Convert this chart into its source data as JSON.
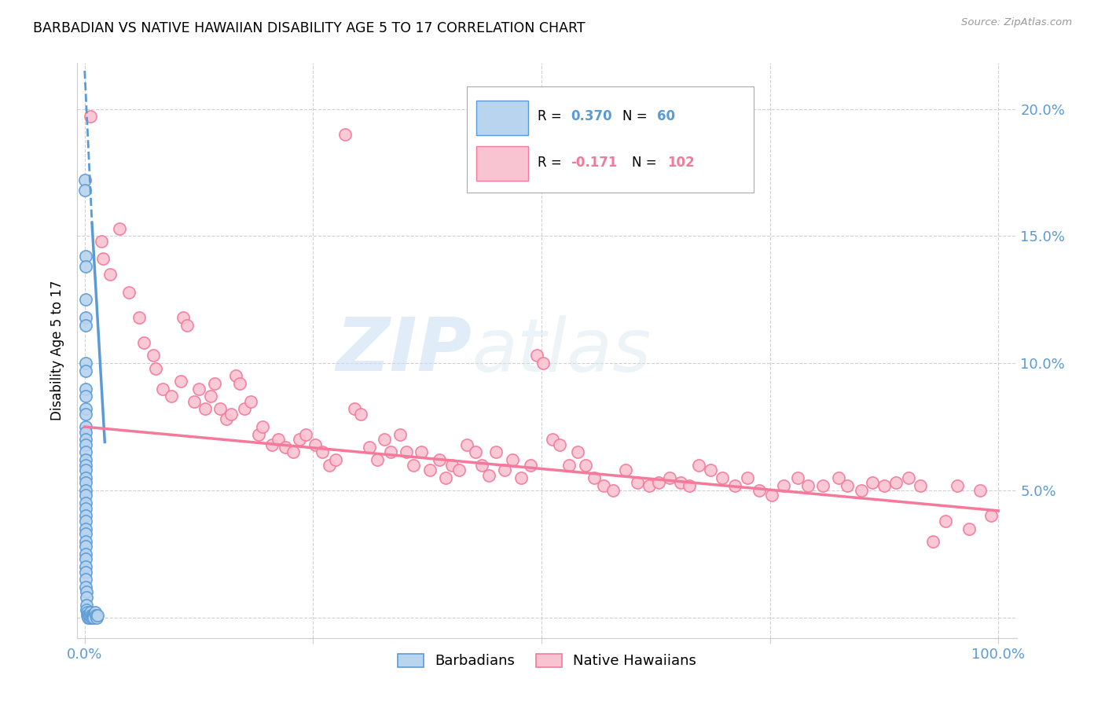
{
  "title": "BARBADIAN VS NATIVE HAWAIIAN DISABILITY AGE 5 TO 17 CORRELATION CHART",
  "source": "Source: ZipAtlas.com",
  "ylabel": "Disability Age 5 to 17",
  "watermark_zip": "ZIP",
  "watermark_atlas": "atlas",
  "xlim": [
    -0.008,
    1.02
  ],
  "ylim": [
    -0.008,
    0.218
  ],
  "yticks": [
    0.0,
    0.05,
    0.1,
    0.15,
    0.2
  ],
  "ytick_labels": [
    "",
    "5.0%",
    "10.0%",
    "15.0%",
    "20.0%"
  ],
  "blue_color": "#5b9bd5",
  "pink_color": "#f4799a",
  "blue_fill": "#b8d4ef",
  "pink_fill": "#f9c4d2",
  "trendline_blue_dashed": [
    [
      0.0,
      0.215
    ],
    [
      0.008,
      0.155
    ]
  ],
  "trendline_blue_solid": [
    [
      0.008,
      0.155
    ],
    [
      0.022,
      0.069
    ]
  ],
  "trendline_pink": [
    [
      0.0,
      0.075
    ],
    [
      1.0,
      0.042
    ]
  ],
  "barbadian_points": [
    [
      0.0,
      0.172
    ],
    [
      0.0,
      0.168
    ],
    [
      0.001,
      0.142
    ],
    [
      0.001,
      0.138
    ],
    [
      0.001,
      0.125
    ],
    [
      0.001,
      0.118
    ],
    [
      0.001,
      0.115
    ],
    [
      0.001,
      0.1
    ],
    [
      0.001,
      0.097
    ],
    [
      0.001,
      0.09
    ],
    [
      0.001,
      0.087
    ],
    [
      0.001,
      0.082
    ],
    [
      0.001,
      0.08
    ],
    [
      0.001,
      0.075
    ],
    [
      0.001,
      0.073
    ],
    [
      0.001,
      0.07
    ],
    [
      0.001,
      0.068
    ],
    [
      0.001,
      0.065
    ],
    [
      0.001,
      0.062
    ],
    [
      0.001,
      0.06
    ],
    [
      0.001,
      0.058
    ],
    [
      0.001,
      0.055
    ],
    [
      0.001,
      0.053
    ],
    [
      0.001,
      0.05
    ],
    [
      0.001,
      0.048
    ],
    [
      0.001,
      0.045
    ],
    [
      0.001,
      0.043
    ],
    [
      0.001,
      0.04
    ],
    [
      0.001,
      0.038
    ],
    [
      0.001,
      0.035
    ],
    [
      0.001,
      0.033
    ],
    [
      0.001,
      0.03
    ],
    [
      0.001,
      0.028
    ],
    [
      0.001,
      0.025
    ],
    [
      0.001,
      0.023
    ],
    [
      0.001,
      0.02
    ],
    [
      0.001,
      0.018
    ],
    [
      0.001,
      0.015
    ],
    [
      0.001,
      0.012
    ],
    [
      0.002,
      0.01
    ],
    [
      0.002,
      0.008
    ],
    [
      0.002,
      0.005
    ],
    [
      0.002,
      0.003
    ],
    [
      0.003,
      0.002
    ],
    [
      0.003,
      0.001
    ],
    [
      0.004,
      0.001
    ],
    [
      0.004,
      0.0
    ],
    [
      0.005,
      0.0
    ],
    [
      0.005,
      0.001
    ],
    [
      0.006,
      0.002
    ],
    [
      0.007,
      0.001
    ],
    [
      0.008,
      0.0
    ],
    [
      0.009,
      0.001
    ],
    [
      0.01,
      0.001
    ],
    [
      0.01,
      0.0
    ],
    [
      0.011,
      0.002
    ],
    [
      0.012,
      0.001
    ],
    [
      0.013,
      0.0
    ],
    [
      0.014,
      0.001
    ]
  ],
  "hawaiian_points": [
    [
      0.006,
      0.197
    ],
    [
      0.018,
      0.148
    ],
    [
      0.02,
      0.141
    ],
    [
      0.028,
      0.135
    ],
    [
      0.038,
      0.153
    ],
    [
      0.048,
      0.128
    ],
    [
      0.06,
      0.118
    ],
    [
      0.065,
      0.108
    ],
    [
      0.075,
      0.103
    ],
    [
      0.078,
      0.098
    ],
    [
      0.085,
      0.09
    ],
    [
      0.095,
      0.087
    ],
    [
      0.105,
      0.093
    ],
    [
      0.108,
      0.118
    ],
    [
      0.112,
      0.115
    ],
    [
      0.12,
      0.085
    ],
    [
      0.125,
      0.09
    ],
    [
      0.132,
      0.082
    ],
    [
      0.138,
      0.087
    ],
    [
      0.142,
      0.092
    ],
    [
      0.148,
      0.082
    ],
    [
      0.155,
      0.078
    ],
    [
      0.16,
      0.08
    ],
    [
      0.165,
      0.095
    ],
    [
      0.17,
      0.092
    ],
    [
      0.175,
      0.082
    ],
    [
      0.182,
      0.085
    ],
    [
      0.19,
      0.072
    ],
    [
      0.195,
      0.075
    ],
    [
      0.205,
      0.068
    ],
    [
      0.212,
      0.07
    ],
    [
      0.22,
      0.067
    ],
    [
      0.228,
      0.065
    ],
    [
      0.235,
      0.07
    ],
    [
      0.242,
      0.072
    ],
    [
      0.252,
      0.068
    ],
    [
      0.26,
      0.065
    ],
    [
      0.268,
      0.06
    ],
    [
      0.275,
      0.062
    ],
    [
      0.285,
      0.19
    ],
    [
      0.295,
      0.082
    ],
    [
      0.302,
      0.08
    ],
    [
      0.312,
      0.067
    ],
    [
      0.32,
      0.062
    ],
    [
      0.328,
      0.07
    ],
    [
      0.335,
      0.065
    ],
    [
      0.345,
      0.072
    ],
    [
      0.352,
      0.065
    ],
    [
      0.36,
      0.06
    ],
    [
      0.368,
      0.065
    ],
    [
      0.378,
      0.058
    ],
    [
      0.388,
      0.062
    ],
    [
      0.395,
      0.055
    ],
    [
      0.402,
      0.06
    ],
    [
      0.41,
      0.058
    ],
    [
      0.418,
      0.068
    ],
    [
      0.428,
      0.065
    ],
    [
      0.435,
      0.06
    ],
    [
      0.442,
      0.056
    ],
    [
      0.45,
      0.065
    ],
    [
      0.46,
      0.058
    ],
    [
      0.468,
      0.062
    ],
    [
      0.478,
      0.055
    ],
    [
      0.488,
      0.06
    ],
    [
      0.495,
      0.103
    ],
    [
      0.502,
      0.1
    ],
    [
      0.512,
      0.07
    ],
    [
      0.52,
      0.068
    ],
    [
      0.53,
      0.06
    ],
    [
      0.54,
      0.065
    ],
    [
      0.548,
      0.06
    ],
    [
      0.558,
      0.055
    ],
    [
      0.568,
      0.052
    ],
    [
      0.578,
      0.05
    ],
    [
      0.592,
      0.058
    ],
    [
      0.605,
      0.053
    ],
    [
      0.618,
      0.052
    ],
    [
      0.628,
      0.053
    ],
    [
      0.64,
      0.055
    ],
    [
      0.652,
      0.053
    ],
    [
      0.662,
      0.052
    ],
    [
      0.672,
      0.06
    ],
    [
      0.685,
      0.058
    ],
    [
      0.698,
      0.055
    ],
    [
      0.712,
      0.052
    ],
    [
      0.725,
      0.055
    ],
    [
      0.738,
      0.05
    ],
    [
      0.752,
      0.048
    ],
    [
      0.765,
      0.052
    ],
    [
      0.78,
      0.055
    ],
    [
      0.792,
      0.052
    ],
    [
      0.808,
      0.052
    ],
    [
      0.825,
      0.055
    ],
    [
      0.835,
      0.052
    ],
    [
      0.85,
      0.05
    ],
    [
      0.862,
      0.053
    ],
    [
      0.875,
      0.052
    ],
    [
      0.888,
      0.053
    ],
    [
      0.902,
      0.055
    ],
    [
      0.915,
      0.052
    ],
    [
      0.928,
      0.03
    ],
    [
      0.942,
      0.038
    ],
    [
      0.955,
      0.052
    ],
    [
      0.968,
      0.035
    ],
    [
      0.98,
      0.05
    ],
    [
      0.992,
      0.04
    ]
  ]
}
